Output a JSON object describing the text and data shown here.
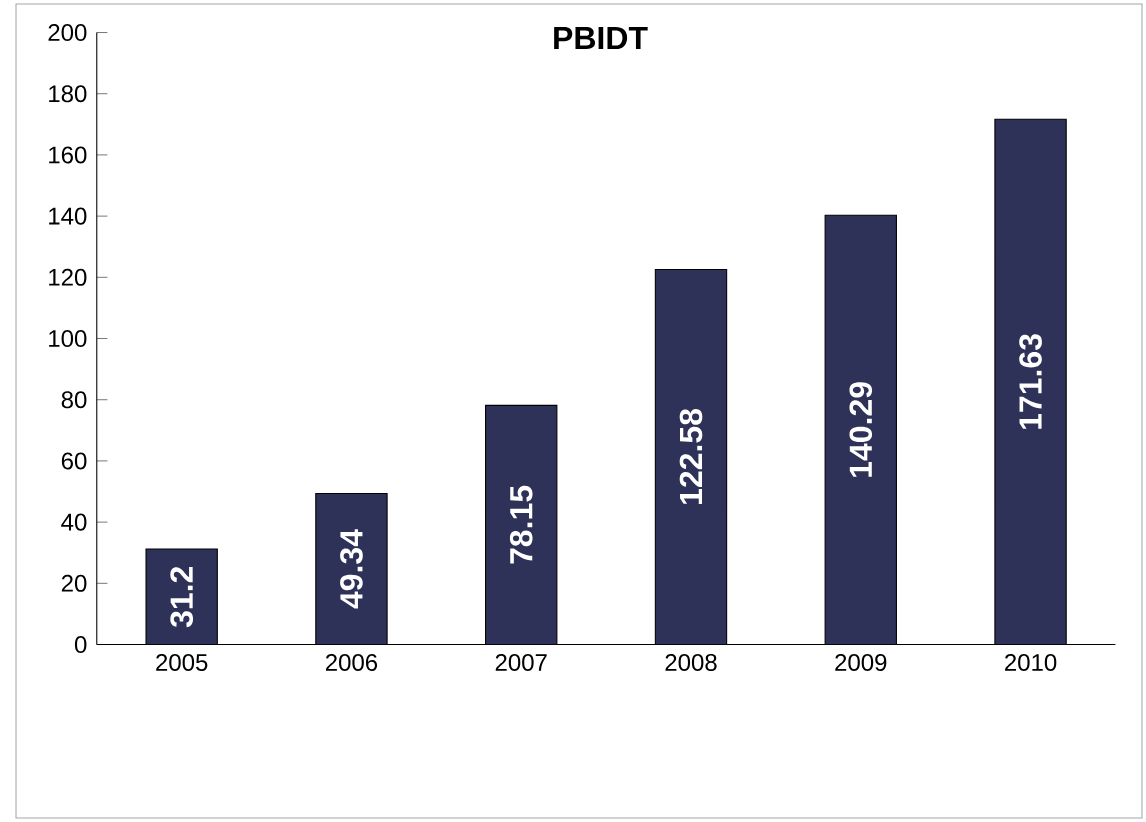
{
  "chart_data": {
    "type": "bar",
    "title": "PBIDT",
    "categories": [
      "2005",
      "2006",
      "2007",
      "2008",
      "2009",
      "2010"
    ],
    "values": [
      31.2,
      49.34,
      78.15,
      122.58,
      140.29,
      171.63
    ],
    "color": "#2e3158",
    "ylim": [
      0,
      200
    ],
    "yticks": [
      0,
      20,
      40,
      60,
      80,
      100,
      120,
      140,
      160,
      180,
      200
    ],
    "data_labels": true,
    "grid": false
  }
}
